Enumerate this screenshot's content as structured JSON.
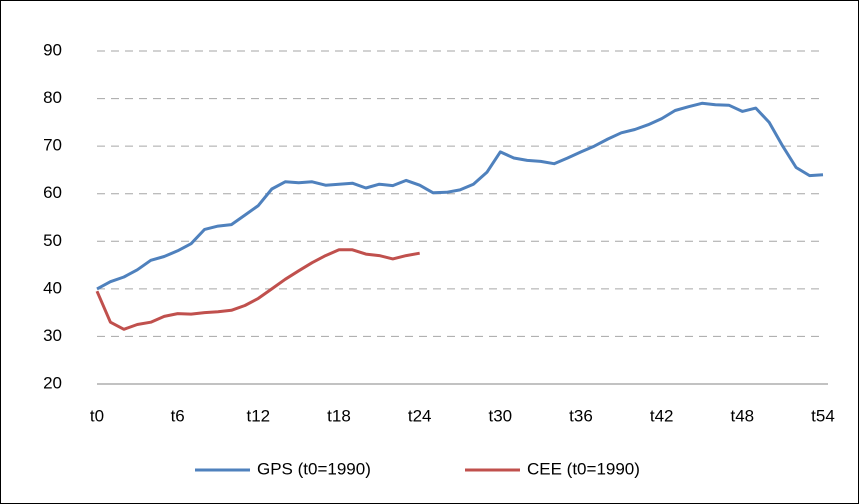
{
  "chart_data": {
    "type": "line",
    "categories": [
      "t0",
      null,
      null,
      null,
      null,
      null,
      "t6",
      null,
      null,
      null,
      null,
      null,
      "t12",
      null,
      null,
      null,
      null,
      null,
      "t18",
      null,
      null,
      null,
      null,
      null,
      "t24",
      null,
      null,
      null,
      null,
      null,
      "t30",
      null,
      null,
      null,
      null,
      null,
      "t36",
      null,
      null,
      null,
      null,
      null,
      "t42",
      null,
      null,
      null,
      null,
      null,
      "t48",
      null,
      null,
      null,
      null,
      null,
      "t54"
    ],
    "series": [
      {
        "name": "GPS (t0=1990)",
        "color": "#4f81bd",
        "values": [
          40,
          41.5,
          42.5,
          44,
          46,
          46.8,
          48,
          49.5,
          52.5,
          53.2,
          53.5,
          55.5,
          57.5,
          61,
          62.5,
          62.3,
          62.5,
          61.8,
          62,
          62.2,
          61.2,
          62,
          61.7,
          62.8,
          61.8,
          60.2,
          60.3,
          60.8,
          62,
          64.5,
          68.8,
          67.5,
          67,
          66.8,
          66.3,
          67.5,
          68.8,
          70,
          71.5,
          72.8,
          73.5,
          74.5,
          75.8,
          77.5,
          78.3,
          79,
          78.7,
          78.6,
          77.3,
          78,
          75,
          70,
          65.5,
          63.8,
          64
        ]
      },
      {
        "name": "CEE (t0=1990)",
        "color": "#c0504d",
        "values": [
          39.5,
          33,
          31.5,
          32.5,
          33,
          34.2,
          34.8,
          34.7,
          35,
          35.2,
          35.5,
          36.5,
          38,
          40,
          42,
          43.8,
          45.5,
          47,
          48.2,
          48.2,
          47.3,
          47,
          46.3,
          47,
          47.5,
          null,
          null,
          null,
          null,
          null,
          null,
          null,
          null,
          null,
          null,
          null,
          null,
          null,
          null,
          null,
          null,
          null,
          null,
          null,
          null,
          null,
          null,
          null,
          null,
          null,
          null,
          null,
          null,
          null,
          null
        ]
      }
    ],
    "ylim": [
      20,
      90
    ],
    "yticks": [
      20,
      30,
      40,
      50,
      60,
      70,
      80,
      90
    ],
    "grid": true,
    "legend": "bottom"
  }
}
